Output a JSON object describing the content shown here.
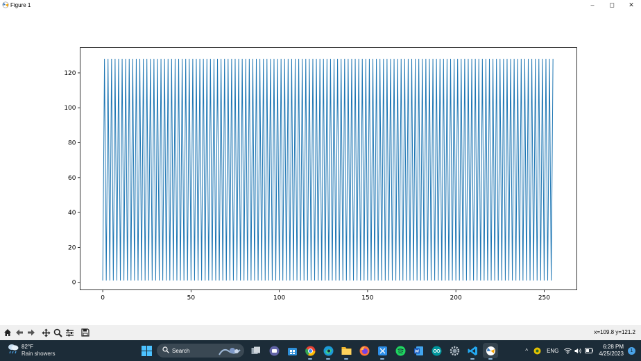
{
  "window": {
    "title": "Figure 1",
    "minimize_label": "–",
    "maximize_label": "◻",
    "close_label": "✕"
  },
  "toolbar": {
    "tools": [
      "home-icon",
      "back-arrow-icon",
      "forward-arrow-icon",
      "pan-icon",
      "zoom-icon",
      "configure-subplots-icon",
      "save-icon"
    ],
    "coordinates": "x=109.8 y=121.2"
  },
  "chart_data": {
    "type": "line",
    "title": "",
    "xlabel": "",
    "ylabel": "",
    "xlim": [
      -12.8,
      268.5
    ],
    "ylim": [
      -4.3,
      134.5
    ],
    "xticks": [
      0,
      50,
      100,
      150,
      200,
      250
    ],
    "yticks": [
      0,
      20,
      40,
      60,
      80,
      100,
      120
    ],
    "grid": false,
    "color": "#1f77b4",
    "series": [
      {
        "pattern": "sawtooth",
        "x_start": 0,
        "x_end": 255,
        "period": 2,
        "low": 1,
        "high": 128
      }
    ]
  },
  "taskbar": {
    "weather_temp": "82°F",
    "weather_desc": "Rain showers",
    "search_label": "Search",
    "apps": [
      "windows-start-icon",
      "task-view-icon",
      "teams-icon",
      "store-icon",
      "chrome-icon",
      "edge-icon",
      "file-explorer-icon",
      "firefox-icon",
      "snipping-icon",
      "spotify-icon",
      "word-icon",
      "arduino-icon",
      "settings-icon",
      "vscode-icon",
      "python-figure-icon"
    ],
    "language": "ENG",
    "time": "6:28 PM",
    "date": "4/25/2023",
    "notification_count": "1",
    "tray_caret": "^"
  }
}
